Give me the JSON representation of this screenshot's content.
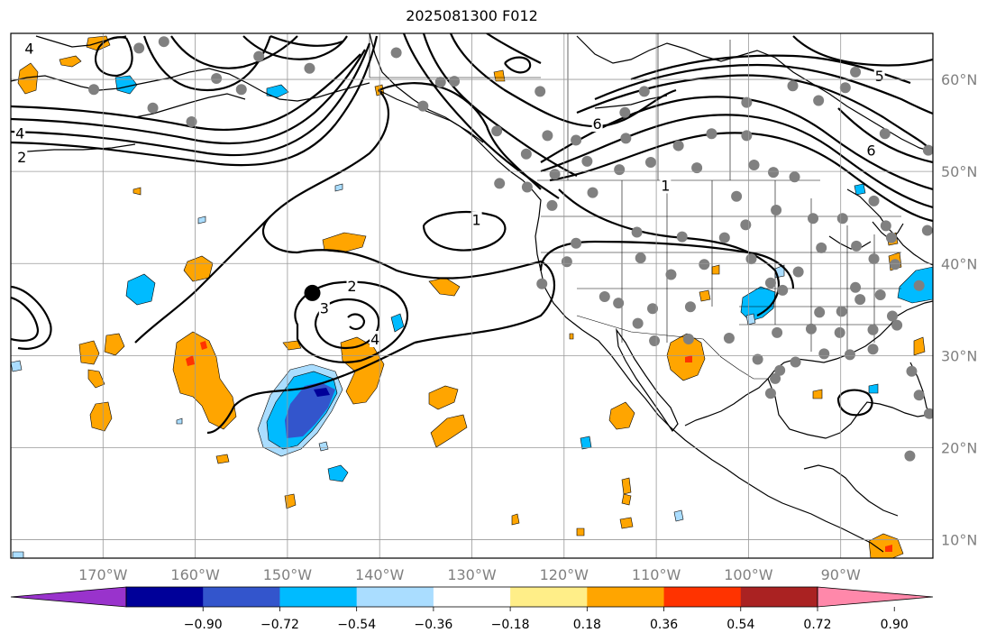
{
  "title": "2025081300 F012",
  "map": {
    "projection": "plate-carree",
    "extent": {
      "lon": [
        -180,
        -80
      ],
      "lat": [
        8,
        65
      ]
    },
    "gridlines": true,
    "lon_ticks": [
      {
        "lon": -170,
        "label": "170°W"
      },
      {
        "lon": -160,
        "label": "160°W"
      },
      {
        "lon": -150,
        "label": "150°W"
      },
      {
        "lon": -140,
        "label": "140°W"
      },
      {
        "lon": -130,
        "label": "130°W"
      },
      {
        "lon": -120,
        "label": "120°W"
      },
      {
        "lon": -110,
        "label": "110°W"
      },
      {
        "lon": -100,
        "label": "100°W"
      },
      {
        "lon": -90,
        "label": "90°W"
      }
    ],
    "lat_ticks": [
      {
        "lat": 60,
        "label": "60°N"
      },
      {
        "lat": 50,
        "label": "50°N"
      },
      {
        "lat": 40,
        "label": "40°N"
      },
      {
        "lat": 30,
        "label": "30°N"
      },
      {
        "lat": 20,
        "label": "20°N"
      },
      {
        "lat": 10,
        "label": "10°N"
      }
    ],
    "contour_labels": [
      {
        "text": "4",
        "lon": -178,
        "lat": 63.4
      },
      {
        "text": "6",
        "lon": -183.5,
        "lat": 60.2
      },
      {
        "text": "3",
        "lon": -187.5,
        "lat": 52.8
      },
      {
        "text": "4",
        "lon": -179,
        "lat": 54.2
      },
      {
        "text": "2",
        "lon": -178.8,
        "lat": 51.6
      },
      {
        "text": "1",
        "lon": -129.5,
        "lat": 44.8
      },
      {
        "text": "2",
        "lon": -143,
        "lat": 37.6
      },
      {
        "text": "3",
        "lon": -146,
        "lat": 35.2
      },
      {
        "text": "4",
        "lon": -140.5,
        "lat": 31.8
      },
      {
        "text": "6",
        "lon": -116.4,
        "lat": 55.2
      },
      {
        "text": "1",
        "lon": -109,
        "lat": 48.5
      },
      {
        "text": "5",
        "lon": -85.8,
        "lat": 60.4
      },
      {
        "text": "6",
        "lon": -86.7,
        "lat": 52.3
      },
      {
        "text": "1",
        "lon": -188.3,
        "lat": 39.6
      },
      {
        "text": "2",
        "lon": -190.5,
        "lat": 37.3
      }
    ],
    "station_dots": [
      [
        -166.1,
        63.4
      ],
      [
        -163.4,
        64.1
      ],
      [
        -157.7,
        60.1
      ],
      [
        -153.1,
        62.5
      ],
      [
        -155,
        58.9
      ],
      [
        -164.6,
        56.9
      ],
      [
        -160.4,
        55.4
      ],
      [
        -147.6,
        61.2
      ],
      [
        -138.2,
        62.9
      ],
      [
        -135.3,
        57.1
      ],
      [
        -127.3,
        54.4
      ],
      [
        -121.8,
        53.9
      ],
      [
        -124,
        48.3
      ],
      [
        -127,
        48.7
      ],
      [
        -121,
        49.7
      ],
      [
        -118.7,
        53.4
      ],
      [
        -117.5,
        51.1
      ],
      [
        -113.3,
        53.6
      ],
      [
        -111.3,
        58.7
      ],
      [
        -113.4,
        56.4
      ],
      [
        -114,
        50.2
      ],
      [
        -110.6,
        51
      ],
      [
        -107.6,
        52.8
      ],
      [
        -105.6,
        50.4
      ],
      [
        -104,
        54.1
      ],
      [
        -100.2,
        53.9
      ],
      [
        -99.4,
        50.7
      ],
      [
        -97.3,
        49.9
      ],
      [
        -95,
        49.4
      ],
      [
        -101.3,
        47.3
      ],
      [
        -97,
        45.8
      ],
      [
        -93,
        44.9
      ],
      [
        -100.3,
        44.2
      ],
      [
        -102.6,
        42.8
      ],
      [
        -107.2,
        42.9
      ],
      [
        -112.1,
        43.4
      ],
      [
        -116.9,
        47.7
      ],
      [
        -121.3,
        46.3
      ],
      [
        -118.7,
        42.2
      ],
      [
        -119.7,
        40.2
      ],
      [
        -122.4,
        37.8
      ],
      [
        -115.6,
        36.4
      ],
      [
        -111.7,
        40.6
      ],
      [
        -108.4,
        38.8
      ],
      [
        -104.8,
        39.9
      ],
      [
        -99.7,
        40.5
      ],
      [
        -97.6,
        37.9
      ],
      [
        -94.6,
        39.1
      ],
      [
        -92.1,
        41.7
      ],
      [
        -88.3,
        41.9
      ],
      [
        -89.8,
        44.9
      ],
      [
        -85.1,
        44.1
      ],
      [
        -84.1,
        39.9
      ],
      [
        -86.4,
        40.5
      ],
      [
        -88.4,
        37.4
      ],
      [
        -85.7,
        36.6
      ],
      [
        -83.9,
        33.3
      ],
      [
        -86.5,
        32.8
      ],
      [
        -90.1,
        32.5
      ],
      [
        -93.2,
        32.9
      ],
      [
        -96.9,
        32.5
      ],
      [
        -102.1,
        31.9
      ],
      [
        -106.3,
        35.3
      ],
      [
        -110.4,
        35.1
      ],
      [
        -114.1,
        35.7
      ],
      [
        -112,
        33.5
      ],
      [
        -110.2,
        31.6
      ],
      [
        -106.5,
        31.8
      ],
      [
        -99,
        29.6
      ],
      [
        -96.6,
        28.4
      ],
      [
        -97.1,
        27.5
      ],
      [
        -97.6,
        25.9
      ],
      [
        -94.9,
        29.3
      ],
      [
        -91.8,
        30.2
      ],
      [
        -89,
        30.1
      ],
      [
        -86.5,
        30.7
      ],
      [
        -82.3,
        28.3
      ],
      [
        -81.5,
        25.7
      ],
      [
        -80.4,
        23.7
      ],
      [
        -82.5,
        19.1
      ],
      [
        -85.2,
        54.1
      ],
      [
        -80.5,
        52.3
      ],
      [
        -86.4,
        46.8
      ],
      [
        -80.6,
        43.6
      ],
      [
        -79.3,
        40.9
      ],
      [
        -75.3,
        36.4
      ],
      [
        -81.5,
        37.6
      ],
      [
        -84.5,
        42.8
      ],
      [
        -89.5,
        59.1
      ],
      [
        -81.3,
        65.2
      ],
      [
        -171,
        58.9
      ],
      [
        -133.4,
        59.7
      ],
      [
        -131.9,
        59.8
      ],
      [
        -122.6,
        58.7
      ],
      [
        -124.1,
        51.9
      ],
      [
        -100.2,
        57.5
      ],
      [
        -92.4,
        57.7
      ],
      [
        -88.4,
        60.8
      ],
      [
        -95.2,
        59.3
      ],
      [
        -72,
        55
      ],
      [
        -96.3,
        37.1
      ],
      [
        -92.3,
        34.7
      ],
      [
        -89.9,
        34.8
      ],
      [
        -87.9,
        36.1
      ],
      [
        -84.4,
        34.3
      ]
    ],
    "reference_marker": {
      "lon": -147.3,
      "lat": 36.8
    }
  },
  "colorbar": {
    "colors": [
      "#9933cc",
      "#000099",
      "#3355cc",
      "#00bbff",
      "#aaddff",
      "#ffffff",
      "#ffee88",
      "#ffa500",
      "#ff3300",
      "#aa2222",
      "#ff88aa"
    ],
    "tick_labels": [
      "−0.90",
      "−0.72",
      "−0.54",
      "−0.36",
      "−0.18",
      "0.18",
      "0.36",
      "0.54",
      "0.72",
      "0.90"
    ],
    "extend": "both"
  }
}
